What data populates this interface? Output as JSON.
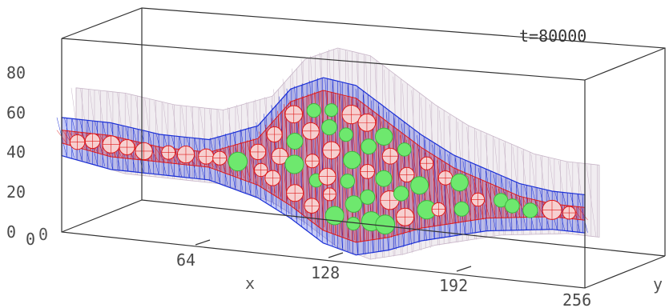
{
  "chart_data": {
    "type": "scatter",
    "title": "",
    "annotation": "t=80000",
    "xlabel": "x",
    "ylabel": "y",
    "zlabel": "",
    "x_ticks": [
      "0",
      "64",
      "128",
      "192",
      "256"
    ],
    "z_ticks": [
      "0",
      "20",
      "40",
      "60",
      "80"
    ],
    "y_ticks_visible": [
      "0"
    ],
    "xlim": [
      0,
      256
    ],
    "zlim": [
      0,
      90
    ],
    "grid": false,
    "legend": "none",
    "colors": {
      "background_mesh": "#c8b6c8",
      "outer_mesh": "#1a2fd6",
      "inner_mesh": "#e01818",
      "particles": "#6ee86e",
      "box": "#333333"
    },
    "particle_outline_x": [
      0,
      24,
      48,
      72,
      96,
      112,
      128,
      144,
      160,
      176,
      192,
      208,
      224,
      240,
      256
    ],
    "particle_outline_upper_z": [
      50,
      50,
      47,
      47,
      56,
      75,
      82,
      80,
      70,
      60,
      52,
      47,
      42,
      40,
      40
    ],
    "particle_outline_lower_z": [
      40,
      36,
      36,
      36,
      30,
      22,
      12,
      8,
      12,
      18,
      22,
      26,
      28,
      30,
      30
    ]
  }
}
